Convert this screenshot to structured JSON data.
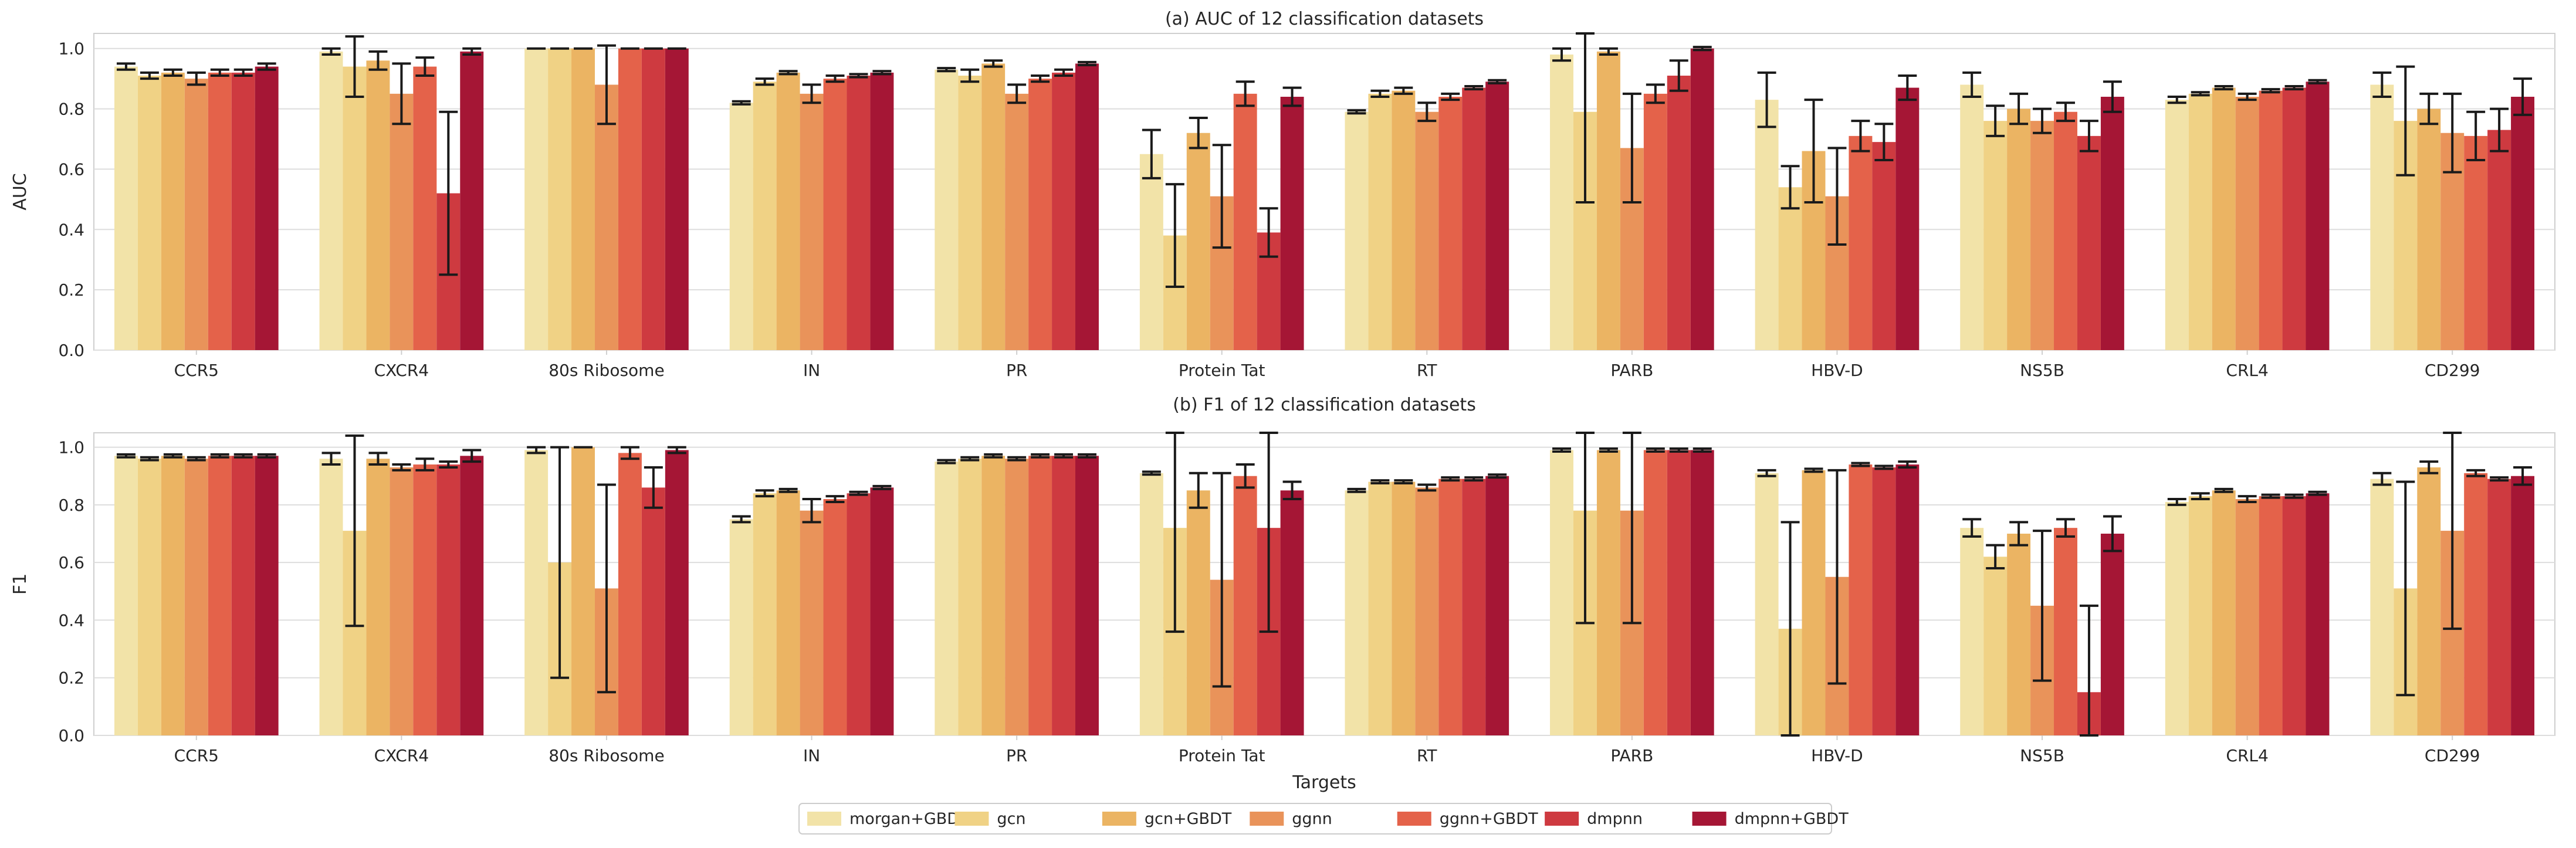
{
  "chart_data": [
    {
      "type": "bar",
      "title": "(a) AUC of 12 classification datasets",
      "xlabel": "",
      "ylabel": "AUC",
      "ylim": [
        0,
        1.05
      ],
      "yticks": [
        "0.0",
        "0.2",
        "0.4",
        "0.6",
        "0.8",
        "1.0"
      ],
      "categories": [
        "CCR5",
        "CXCR4",
        "80s Ribosome",
        "IN",
        "PR",
        "Protein Tat",
        "RT",
        "PARB",
        "HBV-D",
        "NS5B",
        "CRL4",
        "CD299"
      ],
      "series": [
        {
          "name": "morgan+GBDT",
          "values": [
            0.94,
            0.99,
            1.0,
            0.82,
            0.93,
            0.65,
            0.79,
            0.98,
            0.83,
            0.88,
            0.83,
            0.88
          ],
          "err": [
            0.01,
            0.01,
            0.0,
            0.005,
            0.005,
            0.08,
            0.005,
            0.02,
            0.09,
            0.04,
            0.01,
            0.04
          ]
        },
        {
          "name": "gcn",
          "values": [
            0.91,
            0.94,
            1.0,
            0.89,
            0.91,
            0.38,
            0.85,
            0.79,
            0.54,
            0.76,
            0.85,
            0.76
          ],
          "err": [
            0.01,
            0.1,
            0.0,
            0.01,
            0.02,
            0.17,
            0.01,
            0.3,
            0.07,
            0.05,
            0.005,
            0.18
          ]
        },
        {
          "name": "gcn+GBDT",
          "values": [
            0.92,
            0.96,
            1.0,
            0.92,
            0.95,
            0.72,
            0.86,
            0.99,
            0.66,
            0.8,
            0.87,
            0.8
          ],
          "err": [
            0.01,
            0.03,
            0.0,
            0.005,
            0.01,
            0.05,
            0.01,
            0.01,
            0.17,
            0.05,
            0.005,
            0.05
          ]
        },
        {
          "name": "ggnn",
          "values": [
            0.9,
            0.85,
            0.88,
            0.85,
            0.85,
            0.51,
            0.79,
            0.67,
            0.51,
            0.76,
            0.84,
            0.72
          ],
          "err": [
            0.02,
            0.1,
            0.13,
            0.03,
            0.03,
            0.17,
            0.03,
            0.18,
            0.16,
            0.04,
            0.01,
            0.13
          ]
        },
        {
          "name": "ggnn+GBDT",
          "values": [
            0.92,
            0.94,
            1.0,
            0.9,
            0.9,
            0.85,
            0.84,
            0.85,
            0.71,
            0.79,
            0.86,
            0.71
          ],
          "err": [
            0.01,
            0.03,
            0.0,
            0.01,
            0.01,
            0.04,
            0.01,
            0.03,
            0.05,
            0.03,
            0.005,
            0.08
          ]
        },
        {
          "name": "dmpnn",
          "values": [
            0.92,
            0.52,
            1.0,
            0.91,
            0.92,
            0.39,
            0.87,
            0.91,
            0.69,
            0.71,
            0.87,
            0.73
          ],
          "err": [
            0.01,
            0.27,
            0.0,
            0.005,
            0.01,
            0.08,
            0.005,
            0.05,
            0.06,
            0.05,
            0.005,
            0.07
          ]
        },
        {
          "name": "dmpnn+GBDT",
          "values": [
            0.94,
            0.99,
            1.0,
            0.92,
            0.95,
            0.84,
            0.89,
            1.0,
            0.87,
            0.84,
            0.89,
            0.84
          ],
          "err": [
            0.01,
            0.01,
            0.0,
            0.005,
            0.005,
            0.03,
            0.005,
            0.005,
            0.04,
            0.05,
            0.005,
            0.06
          ]
        }
      ]
    },
    {
      "type": "bar",
      "title": "(b) F1 of 12 classification datasets",
      "xlabel": "Targets",
      "ylabel": "F1",
      "ylim": [
        0,
        1.05
      ],
      "yticks": [
        "0.0",
        "0.2",
        "0.4",
        "0.6",
        "0.8",
        "1.0"
      ],
      "categories": [
        "CCR5",
        "CXCR4",
        "80s Ribosome",
        "IN",
        "PR",
        "Protein Tat",
        "RT",
        "PARB",
        "HBV-D",
        "NS5B",
        "CRL4",
        "CD299"
      ],
      "series": [
        {
          "name": "morgan+GBDT",
          "values": [
            0.97,
            0.96,
            0.99,
            0.75,
            0.95,
            0.91,
            0.85,
            0.99,
            0.91,
            0.72,
            0.81,
            0.89
          ],
          "err": [
            0.005,
            0.02,
            0.01,
            0.01,
            0.005,
            0.005,
            0.005,
            0.005,
            0.01,
            0.03,
            0.01,
            0.02
          ]
        },
        {
          "name": "gcn",
          "values": [
            0.96,
            0.71,
            0.6,
            0.84,
            0.96,
            0.72,
            0.88,
            0.78,
            0.37,
            0.62,
            0.83,
            0.51
          ],
          "err": [
            0.005,
            0.33,
            0.4,
            0.01,
            0.005,
            0.36,
            0.005,
            0.39,
            0.37,
            0.04,
            0.01,
            0.37
          ]
        },
        {
          "name": "gcn+GBDT",
          "values": [
            0.97,
            0.96,
            1.0,
            0.85,
            0.97,
            0.85,
            0.88,
            0.99,
            0.92,
            0.7,
            0.85,
            0.93
          ],
          "err": [
            0.005,
            0.02,
            0.0,
            0.005,
            0.005,
            0.06,
            0.005,
            0.005,
            0.005,
            0.04,
            0.005,
            0.02
          ]
        },
        {
          "name": "ggnn",
          "values": [
            0.96,
            0.93,
            0.51,
            0.78,
            0.96,
            0.54,
            0.86,
            0.78,
            0.55,
            0.45,
            0.82,
            0.71
          ],
          "err": [
            0.005,
            0.01,
            0.36,
            0.04,
            0.005,
            0.37,
            0.01,
            0.39,
            0.37,
            0.26,
            0.01,
            0.34
          ]
        },
        {
          "name": "ggnn+GBDT",
          "values": [
            0.97,
            0.94,
            0.98,
            0.82,
            0.97,
            0.9,
            0.89,
            0.99,
            0.94,
            0.72,
            0.83,
            0.91
          ],
          "err": [
            0.005,
            0.02,
            0.02,
            0.01,
            0.005,
            0.04,
            0.005,
            0.005,
            0.005,
            0.03,
            0.005,
            0.01
          ]
        },
        {
          "name": "dmpnn",
          "values": [
            0.97,
            0.94,
            0.86,
            0.84,
            0.97,
            0.72,
            0.89,
            0.99,
            0.93,
            0.15,
            0.83,
            0.89
          ],
          "err": [
            0.005,
            0.01,
            0.07,
            0.005,
            0.005,
            0.36,
            0.005,
            0.005,
            0.005,
            0.3,
            0.005,
            0.005
          ]
        },
        {
          "name": "dmpnn+GBDT",
          "values": [
            0.97,
            0.97,
            0.99,
            0.86,
            0.97,
            0.85,
            0.9,
            0.99,
            0.94,
            0.7,
            0.84,
            0.9
          ],
          "err": [
            0.005,
            0.02,
            0.01,
            0.005,
            0.005,
            0.03,
            0.005,
            0.005,
            0.01,
            0.06,
            0.005,
            0.03
          ]
        }
      ]
    }
  ],
  "colors": [
    "#F2E3A8",
    "#F0D285",
    "#EBB463",
    "#E9935A",
    "#E4624A",
    "#CE3A40",
    "#A51635"
  ],
  "legend": [
    "morgan+GBDT",
    "gcn",
    "gcn+GBDT",
    "ggnn",
    "ggnn+GBDT",
    "dmpnn",
    "dmpnn+GBDT"
  ]
}
